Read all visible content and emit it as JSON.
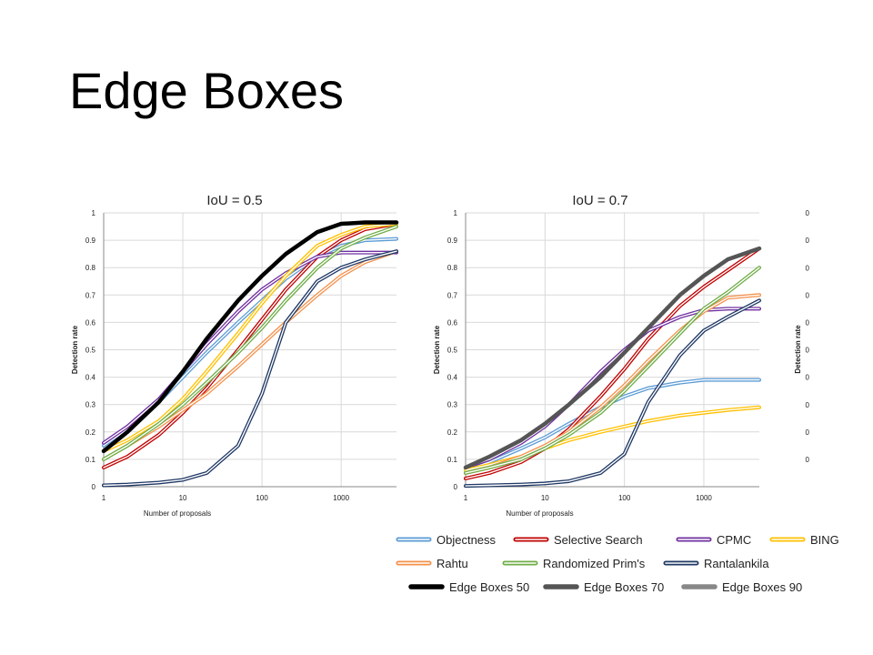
{
  "slide": {
    "title": "Edge Boxes"
  },
  "chart_data": [
    {
      "type": "line",
      "title": "IoU = 0.5",
      "xlabel": "Number of proposals",
      "ylabel": "Detection rate",
      "x_scale": "log",
      "xlim": [
        1,
        5000
      ],
      "ylim": [
        0,
        1
      ],
      "x_ticks": [
        "1",
        "10",
        "100",
        "1000"
      ],
      "y_ticks": [
        "0",
        "0.1",
        "0.2",
        "0.3",
        "0.4",
        "0.5",
        "0.6",
        "0.7",
        "0.8",
        "0.9",
        "1"
      ],
      "series": [
        {
          "name": "Objectness",
          "x": [
            1,
            2,
            5,
            10,
            20,
            50,
            100,
            200,
            500,
            1000,
            2000,
            5000
          ],
          "values": [
            0.15,
            0.21,
            0.31,
            0.4,
            0.49,
            0.6,
            0.68,
            0.76,
            0.84,
            0.88,
            0.9,
            0.905
          ]
        },
        {
          "name": "Selective Search",
          "x": [
            1,
            2,
            5,
            10,
            20,
            50,
            100,
            200,
            500,
            1000,
            2000,
            5000
          ],
          "values": [
            0.07,
            0.11,
            0.19,
            0.27,
            0.36,
            0.5,
            0.61,
            0.72,
            0.84,
            0.9,
            0.94,
            0.96
          ]
        },
        {
          "name": "CPMC",
          "x": [
            1,
            2,
            5,
            10,
            20,
            50,
            100,
            200,
            500,
            1000,
            2000,
            5000
          ],
          "values": [
            0.16,
            0.22,
            0.32,
            0.42,
            0.52,
            0.64,
            0.72,
            0.78,
            0.84,
            0.855,
            0.855,
            0.855
          ]
        },
        {
          "name": "BING",
          "x": [
            1,
            2,
            5,
            10,
            20,
            50,
            100,
            200,
            500,
            1000,
            2000,
            5000
          ],
          "values": [
            0.13,
            0.17,
            0.24,
            0.32,
            0.42,
            0.56,
            0.67,
            0.77,
            0.88,
            0.92,
            0.95,
            0.96
          ]
        },
        {
          "name": "Rahtu",
          "x": [
            1,
            2,
            5,
            10,
            20,
            50,
            100,
            200,
            500,
            1000,
            2000,
            5000
          ],
          "values": [
            0.1,
            0.15,
            0.22,
            0.28,
            0.34,
            0.44,
            0.52,
            0.6,
            0.7,
            0.77,
            0.82,
            0.86
          ]
        },
        {
          "name": "Randomized Prim's",
          "x": [
            1,
            2,
            5,
            10,
            20,
            50,
            100,
            200,
            500,
            1000,
            2000,
            5000
          ],
          "values": [
            0.1,
            0.15,
            0.23,
            0.3,
            0.38,
            0.49,
            0.58,
            0.68,
            0.8,
            0.87,
            0.91,
            0.95
          ]
        },
        {
          "name": "Rantalankila",
          "x": [
            1,
            2,
            5,
            10,
            20,
            50,
            100,
            200,
            500,
            1000,
            2000,
            5000
          ],
          "values": [
            0.005,
            0.008,
            0.015,
            0.025,
            0.05,
            0.15,
            0.34,
            0.6,
            0.75,
            0.8,
            0.83,
            0.86
          ]
        },
        {
          "name": "Edge Boxes 50",
          "x": [
            1,
            2,
            5,
            10,
            20,
            50,
            100,
            200,
            500,
            1000,
            2000,
            5000
          ],
          "values": [
            0.13,
            0.2,
            0.31,
            0.42,
            0.54,
            0.68,
            0.77,
            0.85,
            0.93,
            0.96,
            0.965,
            0.965
          ]
        }
      ]
    },
    {
      "type": "line",
      "title": "IoU = 0.7",
      "xlabel": "Number of proposals",
      "ylabel": "Detection rate",
      "x_scale": "log",
      "xlim": [
        1,
        5000
      ],
      "ylim": [
        0,
        1
      ],
      "x_ticks": [
        "1",
        "10",
        "100",
        "1000"
      ],
      "y_ticks": [
        "0",
        "0.1",
        "0.2",
        "0.3",
        "0.4",
        "0.5",
        "0.6",
        "0.7",
        "0.8",
        "0.9",
        "1"
      ],
      "series": [
        {
          "name": "Objectness",
          "x": [
            1,
            2,
            5,
            10,
            20,
            50,
            100,
            200,
            500,
            1000,
            2000,
            5000
          ],
          "values": [
            0.06,
            0.09,
            0.14,
            0.18,
            0.23,
            0.29,
            0.33,
            0.36,
            0.38,
            0.39,
            0.39,
            0.39
          ]
        },
        {
          "name": "Selective Search",
          "x": [
            1,
            2,
            5,
            10,
            20,
            50,
            100,
            200,
            500,
            1000,
            2000,
            5000
          ],
          "values": [
            0.03,
            0.05,
            0.09,
            0.14,
            0.21,
            0.33,
            0.43,
            0.54,
            0.66,
            0.73,
            0.79,
            0.87
          ]
        },
        {
          "name": "CPMC",
          "x": [
            1,
            2,
            5,
            10,
            20,
            50,
            100,
            200,
            500,
            1000,
            2000,
            5000
          ],
          "values": [
            0.07,
            0.1,
            0.16,
            0.22,
            0.3,
            0.42,
            0.5,
            0.57,
            0.62,
            0.645,
            0.65,
            0.65
          ]
        },
        {
          "name": "BING",
          "x": [
            1,
            2,
            5,
            10,
            20,
            50,
            100,
            200,
            500,
            1000,
            2000,
            5000
          ],
          "values": [
            0.06,
            0.08,
            0.11,
            0.14,
            0.17,
            0.2,
            0.22,
            0.24,
            0.26,
            0.27,
            0.28,
            0.29
          ]
        },
        {
          "name": "Rahtu",
          "x": [
            1,
            2,
            5,
            10,
            20,
            50,
            100,
            200,
            500,
            1000,
            2000,
            5000
          ],
          "values": [
            0.05,
            0.07,
            0.11,
            0.15,
            0.2,
            0.29,
            0.37,
            0.46,
            0.57,
            0.64,
            0.69,
            0.7
          ]
        },
        {
          "name": "Randomized Prim's",
          "x": [
            1,
            2,
            5,
            10,
            20,
            50,
            100,
            200,
            500,
            1000,
            2000,
            5000
          ],
          "values": [
            0.05,
            0.07,
            0.1,
            0.14,
            0.19,
            0.27,
            0.35,
            0.44,
            0.56,
            0.65,
            0.71,
            0.8
          ]
        },
        {
          "name": "Rantalankila",
          "x": [
            1,
            2,
            5,
            10,
            20,
            50,
            100,
            200,
            500,
            1000,
            2000,
            5000
          ],
          "values": [
            0.003,
            0.005,
            0.008,
            0.012,
            0.02,
            0.05,
            0.12,
            0.31,
            0.48,
            0.57,
            0.62,
            0.68
          ]
        },
        {
          "name": "Edge Boxes 70",
          "x": [
            1,
            2,
            5,
            10,
            20,
            50,
            100,
            200,
            500,
            1000,
            2000,
            5000
          ],
          "values": [
            0.07,
            0.11,
            0.17,
            0.23,
            0.3,
            0.4,
            0.49,
            0.58,
            0.7,
            0.77,
            0.83,
            0.87
          ]
        }
      ]
    },
    {
      "type": "line",
      "title": "",
      "partial": "cropped at right edge",
      "y_ticks": [
        "0",
        "0",
        "0",
        "0",
        "0",
        "0",
        "0",
        "0",
        "0",
        "0"
      ]
    }
  ],
  "legend": [
    {
      "name": "Objectness",
      "color": "#5b9bd5",
      "style": "outline"
    },
    {
      "name": "Selective Search",
      "color": "#c00000",
      "style": "outline"
    },
    {
      "name": "CPMC",
      "color": "#7030a0",
      "style": "outline"
    },
    {
      "name": "BING",
      "color": "#ffc000",
      "style": "outline"
    },
    {
      "name": "Rahtu",
      "color": "#f4914b",
      "style": "outline"
    },
    {
      "name": "Randomized Prim's",
      "color": "#70ad47",
      "style": "outline"
    },
    {
      "name": "Rantalankila",
      "color": "#1f3864",
      "style": "outline"
    },
    {
      "name": "Edge Boxes 50",
      "color": "#000000",
      "style": "solid"
    },
    {
      "name": "Edge Boxes 70",
      "color": "#555555",
      "style": "solid"
    },
    {
      "name": "Edge Boxes 90",
      "color": "#888888",
      "style": "solid"
    }
  ]
}
